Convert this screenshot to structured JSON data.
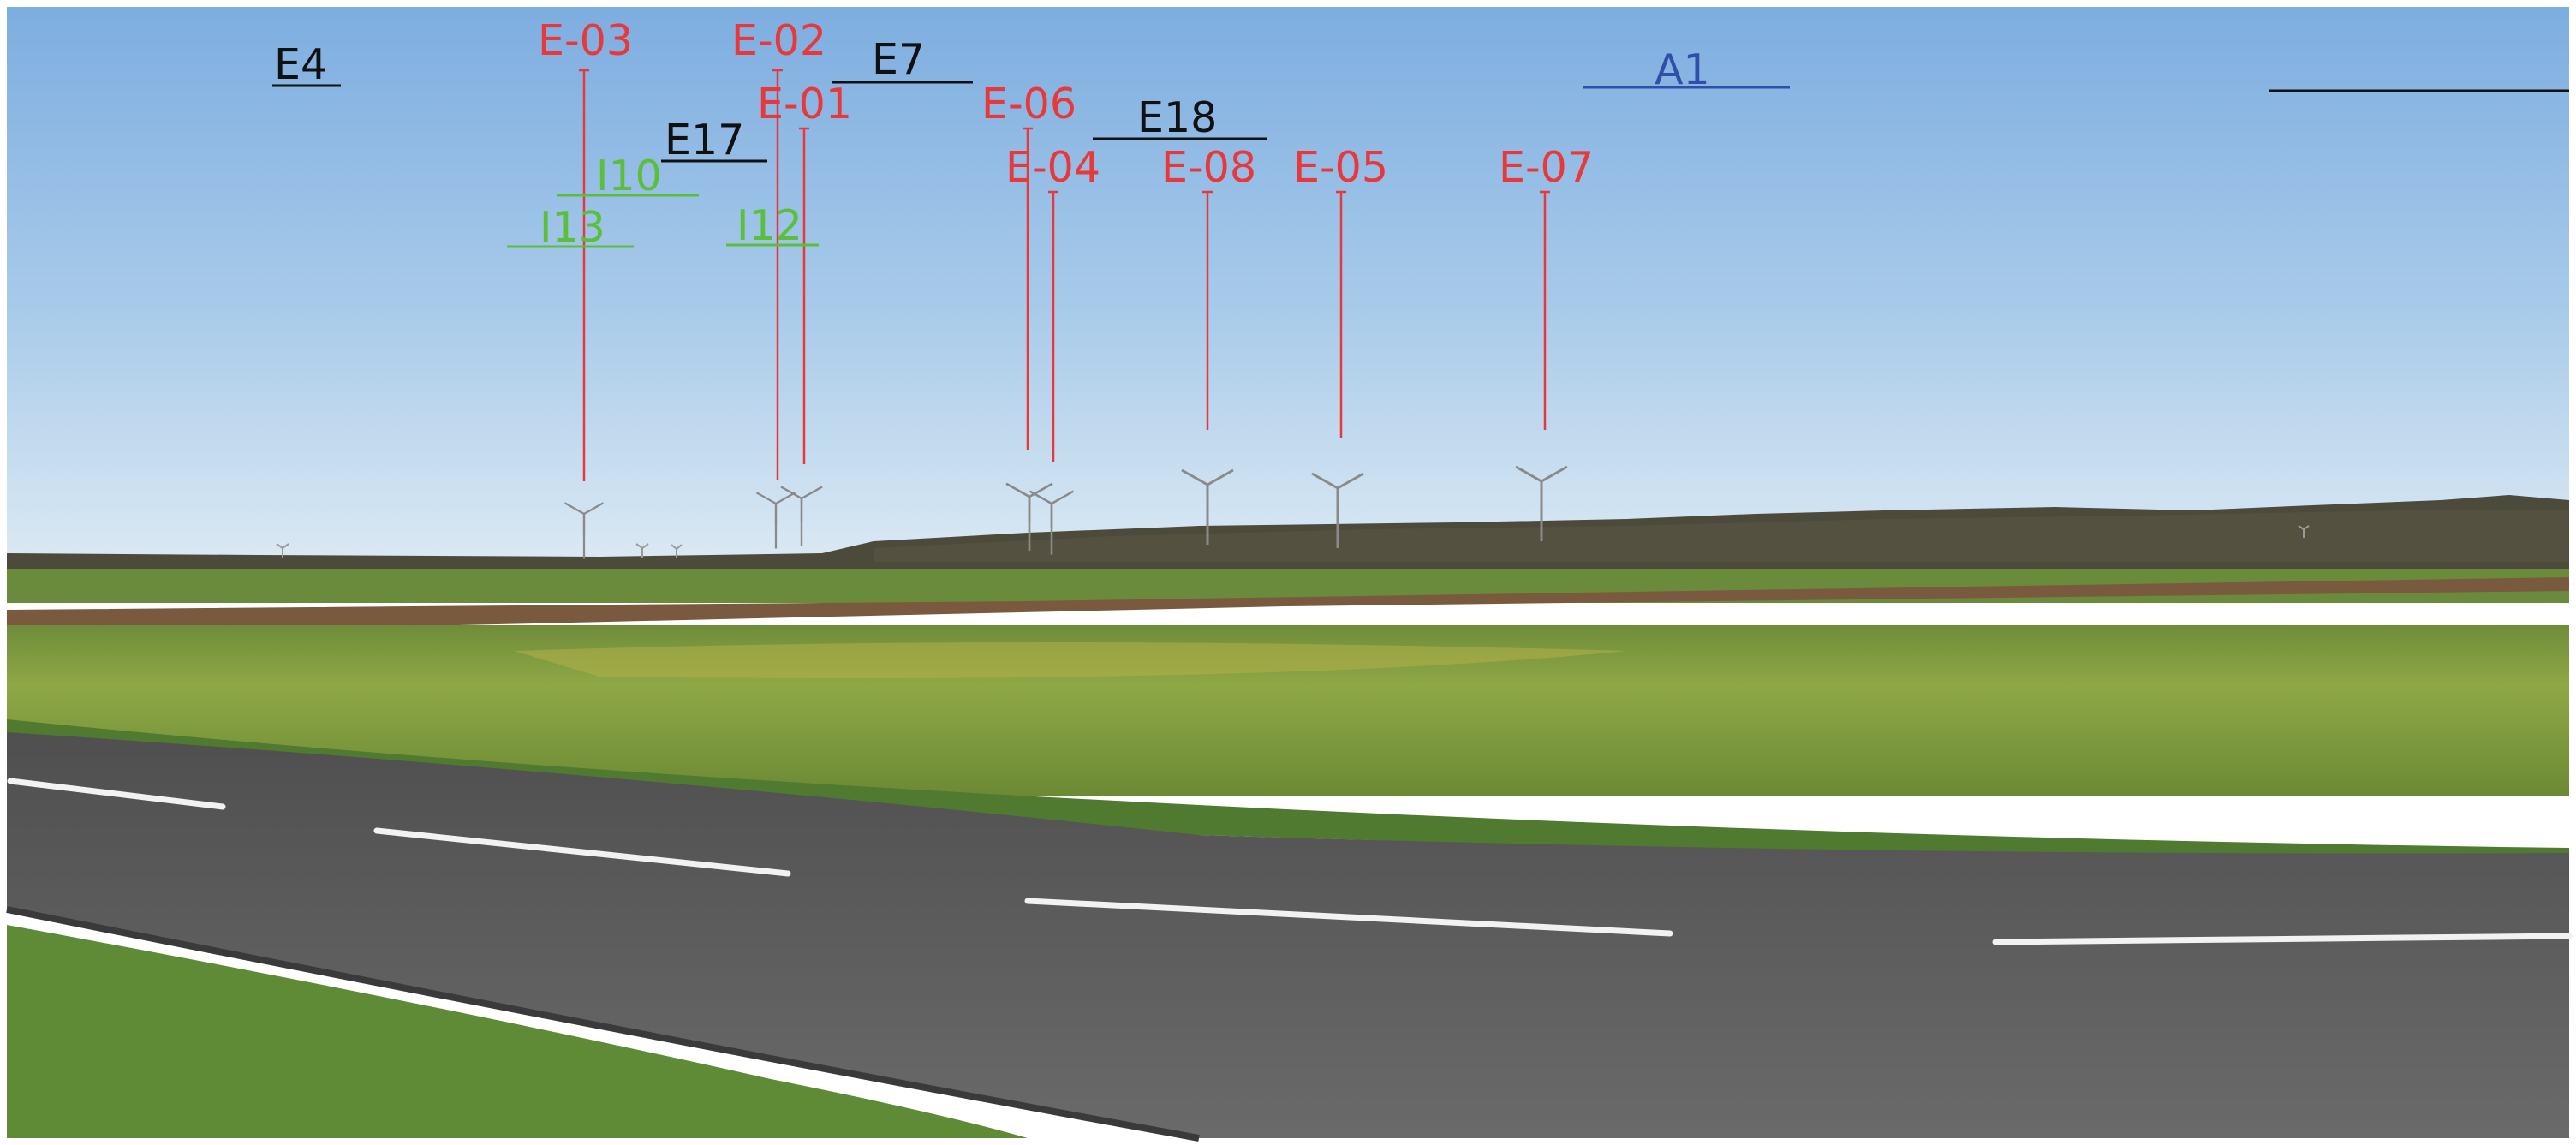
{
  "labels": {
    "E03": "E-03",
    "E02": "E-02",
    "E01": "E-01",
    "E06": "E-06",
    "E04": "E-04",
    "E08": "E-08",
    "E05": "E-05",
    "E07": "E-07",
    "E4": "E4",
    "E17": "E17",
    "E7": "E7",
    "E18": "E18",
    "I10": "I10",
    "I13": "I13",
    "I12": "I12",
    "A1": "A1"
  },
  "colors": {
    "project_turbine": "#e8383a",
    "existing_project": "#111111",
    "instruction_project": "#5cbf3c",
    "authorized_project": "#2f4fa8",
    "sky_top": "#7fb0e0",
    "sky_bottom": "#d9e8f3",
    "field": "#7d9a3c",
    "road": "#5f5f5f"
  },
  "icons": [
    "wind-turbine-icon"
  ]
}
